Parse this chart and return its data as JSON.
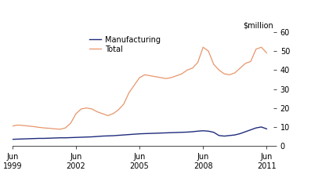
{
  "manufacturing_color": "#1f2b7b",
  "total_color": "#e8956b",
  "ylabel": "$million",
  "yticks": [
    0,
    10,
    20,
    30,
    40,
    50,
    60
  ],
  "ylim": [
    0,
    60
  ],
  "xlim_start": 1999.417,
  "xlim_end": 2011.75,
  "xtick_positions": [
    1999.417,
    2002.417,
    2005.417,
    2008.417,
    2011.417
  ],
  "xtick_labels_top": [
    "Jun",
    "Jun",
    "Jun",
    "Jun",
    "Jun"
  ],
  "xtick_labels_bot": [
    "1999",
    "2002",
    "2005",
    "2008",
    "2011"
  ],
  "legend_labels": [
    "Manufacturing",
    "Total"
  ],
  "x_quarterly": [
    1999.417,
    1999.667,
    1999.917,
    2000.167,
    2000.417,
    2000.667,
    2000.917,
    2001.167,
    2001.417,
    2001.667,
    2001.917,
    2002.167,
    2002.417,
    2002.667,
    2002.917,
    2003.167,
    2003.417,
    2003.667,
    2003.917,
    2004.167,
    2004.417,
    2004.667,
    2004.917,
    2005.167,
    2005.417,
    2005.667,
    2005.917,
    2006.167,
    2006.417,
    2006.667,
    2006.917,
    2007.167,
    2007.417,
    2007.667,
    2007.917,
    2008.167,
    2008.417,
    2008.667,
    2008.917,
    2009.167,
    2009.417,
    2009.667,
    2009.917,
    2010.167,
    2010.417,
    2010.667,
    2010.917,
    2011.167,
    2011.417
  ],
  "total": [
    10.5,
    11.0,
    10.8,
    10.5,
    10.2,
    9.8,
    9.5,
    9.3,
    9.0,
    8.8,
    9.5,
    12.0,
    17.0,
    19.5,
    20.0,
    19.5,
    18.0,
    17.0,
    16.0,
    17.0,
    19.0,
    22.0,
    28.0,
    32.0,
    36.0,
    37.5,
    37.0,
    36.5,
    36.0,
    35.5,
    36.0,
    37.0,
    38.0,
    40.0,
    41.0,
    44.0,
    52.0,
    50.0,
    43.0,
    40.0,
    38.0,
    37.5,
    38.5,
    41.0,
    43.5,
    44.5,
    51.0,
    52.0,
    49.0
  ],
  "manufacturing": [
    3.5,
    3.6,
    3.7,
    3.8,
    3.9,
    4.0,
    4.0,
    4.1,
    4.2,
    4.3,
    4.3,
    4.4,
    4.5,
    4.6,
    4.7,
    4.8,
    5.0,
    5.2,
    5.3,
    5.4,
    5.6,
    5.8,
    6.0,
    6.2,
    6.4,
    6.5,
    6.6,
    6.7,
    6.8,
    6.9,
    7.0,
    7.1,
    7.2,
    7.3,
    7.5,
    7.8,
    8.0,
    7.8,
    7.2,
    5.5,
    5.2,
    5.5,
    5.8,
    6.5,
    7.5,
    8.5,
    9.5,
    10.0,
    9.0
  ]
}
